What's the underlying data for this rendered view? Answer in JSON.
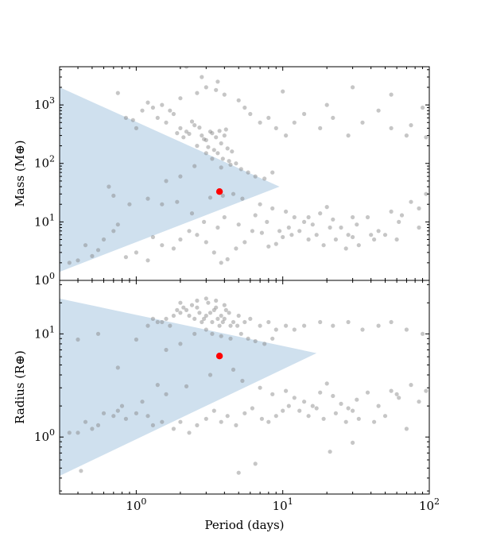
{
  "colors": {
    "points": "#808080",
    "highlight": "#ff0000",
    "region": "#cfe0ee",
    "frame": "#000000"
  },
  "chart_data": [
    {
      "type": "scatter",
      "panel": "top",
      "xlabel": "",
      "ylabel": "Mass (M⊕)",
      "xscale": "log",
      "yscale": "log",
      "xlim": [
        0.3,
        100
      ],
      "ylim": [
        1,
        4500
      ],
      "xticks": [
        1,
        10,
        100
      ],
      "xtick_labels": [],
      "yticks": [
        1,
        10,
        100,
        1000
      ],
      "ytick_labels": [
        "10^0",
        "10^1",
        "10^2",
        "10^3"
      ],
      "shaded_region": [
        [
          0.3,
          2000
        ],
        [
          9.5,
          40
        ],
        [
          0.3,
          1.4
        ]
      ],
      "highlight": {
        "x": 3.7,
        "y": 33
      },
      "points": [
        [
          1.4,
          600
        ],
        [
          1.6,
          500
        ],
        [
          1.8,
          700
        ],
        [
          2.0,
          400
        ],
        [
          2.2,
          350
        ],
        [
          2.5,
          450
        ],
        [
          2.8,
          300
        ],
        [
          3.0,
          250
        ],
        [
          3.2,
          350
        ],
        [
          3.5,
          280
        ],
        [
          3.8,
          220
        ],
        [
          4.0,
          300
        ],
        [
          4.2,
          180
        ],
        [
          4.5,
          160
        ],
        [
          2.6,
          200
        ],
        [
          3.1,
          190
        ],
        [
          3.4,
          170
        ],
        [
          3.6,
          150
        ],
        [
          3.9,
          120
        ],
        [
          4.3,
          110
        ],
        [
          4.8,
          100
        ],
        [
          2.9,
          260
        ],
        [
          2.3,
          320
        ],
        [
          2.1,
          280
        ],
        [
          1.9,
          330
        ],
        [
          3.3,
          330
        ],
        [
          3.7,
          360
        ],
        [
          4.1,
          380
        ],
        [
          2.7,
          410
        ],
        [
          2.4,
          520
        ],
        [
          1.7,
          800
        ],
        [
          1.5,
          1000
        ],
        [
          1.3,
          900
        ],
        [
          1.2,
          1100
        ],
        [
          2.0,
          1300
        ],
        [
          2.6,
          1600
        ],
        [
          3.0,
          2000
        ],
        [
          3.5,
          1800
        ],
        [
          4.0,
          1500
        ],
        [
          5.0,
          1200
        ],
        [
          5.5,
          900
        ],
        [
          6.0,
          700
        ],
        [
          7.0,
          500
        ],
        [
          8.0,
          600
        ],
        [
          9.0,
          400
        ],
        [
          10.5,
          300
        ],
        [
          12.0,
          500
        ],
        [
          14.0,
          700
        ],
        [
          18.0,
          400
        ],
        [
          22.0,
          600
        ],
        [
          28.0,
          300
        ],
        [
          35.0,
          500
        ],
        [
          45.0,
          800
        ],
        [
          55.0,
          400
        ],
        [
          70.0,
          300
        ],
        [
          90.0,
          900
        ],
        [
          2.2,
          4500
        ],
        [
          2.8,
          3000
        ],
        [
          3.6,
          2500
        ],
        [
          10.0,
          1700
        ],
        [
          20.0,
          1000
        ],
        [
          30.0,
          2000
        ],
        [
          55.0,
          1500
        ],
        [
          75.0,
          450
        ],
        [
          95.0,
          280
        ],
        [
          0.85,
          600
        ],
        [
          0.95,
          550
        ],
        [
          0.75,
          1600
        ],
        [
          1.1,
          800
        ],
        [
          1.0,
          400
        ],
        [
          3.0,
          150
        ],
        [
          3.3,
          120
        ],
        [
          2.5,
          90
        ],
        [
          3.8,
          85
        ],
        [
          4.4,
          95
        ],
        [
          5.2,
          80
        ],
        [
          5.8,
          70
        ],
        [
          6.5,
          60
        ],
        [
          7.5,
          55
        ],
        [
          8.5,
          70
        ],
        [
          2.0,
          60
        ],
        [
          1.6,
          50
        ],
        [
          3.2,
          26
        ],
        [
          3.9,
          28
        ],
        [
          4.6,
          30
        ],
        [
          5.3,
          25
        ],
        [
          7.0,
          20
        ],
        [
          8.5,
          17
        ],
        [
          10.5,
          15
        ],
        [
          12.0,
          12
        ],
        [
          14.0,
          10
        ],
        [
          16.0,
          9
        ],
        [
          18.0,
          14
        ],
        [
          20.0,
          18
        ],
        [
          22.0,
          11
        ],
        [
          25.0,
          8
        ],
        [
          28.0,
          6
        ],
        [
          32.0,
          9
        ],
        [
          38.0,
          12
        ],
        [
          45.0,
          7
        ],
        [
          55.0,
          15
        ],
        [
          62.0,
          10
        ],
        [
          75.0,
          22
        ],
        [
          85.0,
          17
        ],
        [
          95.0,
          30
        ],
        [
          11.0,
          8
        ],
        [
          13.0,
          7
        ],
        [
          15.0,
          5
        ],
        [
          17.0,
          6
        ],
        [
          19.0,
          4
        ],
        [
          23.0,
          5
        ],
        [
          27.0,
          3.5
        ],
        [
          30.0,
          5.5
        ],
        [
          33.0,
          4
        ],
        [
          42.0,
          5
        ],
        [
          50.0,
          6
        ],
        [
          60.0,
          5
        ],
        [
          10.0,
          5.5
        ],
        [
          9.0,
          4.2
        ],
        [
          8.0,
          3.8
        ],
        [
          7.2,
          6.5
        ],
        [
          6.2,
          7
        ],
        [
          5.5,
          4.5
        ],
        [
          4.8,
          3.5
        ],
        [
          4.2,
          2.3
        ],
        [
          3.8,
          2.0
        ],
        [
          3.4,
          3.0
        ],
        [
          3.0,
          4.5
        ],
        [
          2.6,
          6
        ],
        [
          2.3,
          7
        ],
        [
          2.0,
          5
        ],
        [
          1.8,
          3.5
        ],
        [
          1.5,
          4
        ],
        [
          1.3,
          5.5
        ],
        [
          1.2,
          2.2
        ],
        [
          1.0,
          3
        ],
        [
          0.85,
          2.5
        ],
        [
          0.75,
          9
        ],
        [
          0.7,
          7
        ],
        [
          0.6,
          5
        ],
        [
          0.55,
          3.3
        ],
        [
          0.5,
          2.6
        ],
        [
          0.45,
          4
        ],
        [
          0.4,
          2.2
        ],
        [
          0.35,
          2.0
        ],
        [
          0.65,
          40
        ],
        [
          0.7,
          28
        ],
        [
          0.9,
          20
        ],
        [
          1.2,
          25
        ],
        [
          1.5,
          20
        ],
        [
          1.9,
          22
        ],
        [
          2.4,
          14
        ],
        [
          2.9,
          10
        ],
        [
          3.6,
          8
        ],
        [
          4.0,
          12
        ],
        [
          5.0,
          9
        ],
        [
          6.5,
          13
        ],
        [
          7.8,
          10
        ],
        [
          9.5,
          7
        ],
        [
          11.5,
          6
        ],
        [
          15.0,
          12
        ],
        [
          21.0,
          8
        ],
        [
          30.0,
          12
        ],
        [
          40.0,
          6
        ],
        [
          65.0,
          13
        ],
        [
          85.0,
          8
        ]
      ]
    },
    {
      "type": "scatter",
      "panel": "bottom",
      "xlabel": "Period (days)",
      "ylabel": "Radius (R⊕)",
      "xscale": "log",
      "yscale": "log",
      "xlim": [
        0.3,
        100
      ],
      "ylim": [
        0.28,
        33
      ],
      "xticks": [
        1,
        10,
        100
      ],
      "xtick_labels": [
        "10^0",
        "10^1",
        "10^2"
      ],
      "yticks": [
        1,
        10
      ],
      "ytick_labels": [
        "10^0",
        "10^1"
      ],
      "shaded_region": [
        [
          0.3,
          22
        ],
        [
          17,
          6.5
        ],
        [
          0.3,
          0.42
        ]
      ],
      "highlight": {
        "x": 3.7,
        "y": 6.1
      },
      "points": [
        [
          1.4,
          13
        ],
        [
          1.6,
          14
        ],
        [
          1.8,
          15
        ],
        [
          2.0,
          16
        ],
        [
          2.2,
          17
        ],
        [
          2.5,
          14
        ],
        [
          2.8,
          13
        ],
        [
          3.0,
          15
        ],
        [
          3.2,
          16
        ],
        [
          3.5,
          18
        ],
        [
          3.8,
          15
        ],
        [
          4.0,
          14
        ],
        [
          4.3,
          16
        ],
        [
          4.6,
          13
        ],
        [
          2.6,
          18
        ],
        [
          3.1,
          20
        ],
        [
          3.4,
          17
        ],
        [
          3.7,
          12
        ],
        [
          3.9,
          13
        ],
        [
          4.4,
          12
        ],
        [
          4.9,
          12
        ],
        [
          2.9,
          14
        ],
        [
          2.3,
          15
        ],
        [
          2.1,
          18
        ],
        [
          1.9,
          17
        ],
        [
          3.3,
          13
        ],
        [
          3.6,
          14
        ],
        [
          4.1,
          17
        ],
        [
          2.7,
          16
        ],
        [
          2.4,
          19
        ],
        [
          1.7,
          12
        ],
        [
          1.5,
          13
        ],
        [
          1.3,
          14
        ],
        [
          1.2,
          12
        ],
        [
          2.0,
          20
        ],
        [
          2.6,
          21
        ],
        [
          3.0,
          22
        ],
        [
          3.5,
          21
        ],
        [
          4.0,
          19
        ],
        [
          5.0,
          15
        ],
        [
          5.5,
          13
        ],
        [
          6.0,
          14
        ],
        [
          7.0,
          12
        ],
        [
          8.0,
          13
        ],
        [
          9.0,
          11
        ],
        [
          10.5,
          12
        ],
        [
          12.0,
          11
        ],
        [
          14.0,
          12
        ],
        [
          18.0,
          13
        ],
        [
          22.0,
          12
        ],
        [
          28.0,
          13
        ],
        [
          35.0,
          11
        ],
        [
          45.0,
          12
        ],
        [
          55.0,
          13
        ],
        [
          70.0,
          11
        ],
        [
          90.0,
          10
        ],
        [
          3.0,
          11
        ],
        [
          3.3,
          10
        ],
        [
          2.5,
          10
        ],
        [
          3.8,
          9.5
        ],
        [
          4.4,
          9
        ],
        [
          5.2,
          10
        ],
        [
          5.8,
          9
        ],
        [
          6.5,
          8.5
        ],
        [
          7.5,
          8
        ],
        [
          8.5,
          9
        ],
        [
          2.0,
          8
        ],
        [
          1.6,
          7
        ],
        [
          1.0,
          8.8
        ],
        [
          0.4,
          8.8
        ],
        [
          0.55,
          10
        ],
        [
          0.75,
          4.7
        ],
        [
          3.2,
          4.0
        ],
        [
          4.6,
          4.5
        ],
        [
          5.3,
          3.5
        ],
        [
          7.0,
          3.0
        ],
        [
          8.5,
          2.6
        ],
        [
          10.5,
          2.8
        ],
        [
          12.0,
          2.4
        ],
        [
          14.0,
          2.2
        ],
        [
          16.0,
          2.0
        ],
        [
          18.0,
          2.7
        ],
        [
          20.0,
          3.3
        ],
        [
          22.0,
          2.5
        ],
        [
          25.0,
          2.1
        ],
        [
          28.0,
          1.9
        ],
        [
          32.0,
          2.3
        ],
        [
          38.0,
          2.7
        ],
        [
          45.0,
          2.0
        ],
        [
          55.0,
          2.8
        ],
        [
          62.0,
          2.4
        ],
        [
          75.0,
          3.2
        ],
        [
          85.0,
          2.2
        ],
        [
          95.0,
          2.8
        ],
        [
          11.0,
          2.0
        ],
        [
          13.0,
          1.8
        ],
        [
          15.0,
          1.6
        ],
        [
          17.0,
          1.9
        ],
        [
          19.0,
          1.5
        ],
        [
          23.0,
          1.7
        ],
        [
          27.0,
          1.4
        ],
        [
          30.0,
          1.8
        ],
        [
          33.0,
          1.5
        ],
        [
          42.0,
          1.4
        ],
        [
          50.0,
          1.6
        ],
        [
          60.0,
          2.6
        ],
        [
          70.0,
          1.2
        ],
        [
          21.0,
          0.72
        ],
        [
          30.0,
          0.88
        ],
        [
          6.5,
          0.55
        ],
        [
          5.0,
          0.45
        ],
        [
          10.0,
          1.8
        ],
        [
          9.0,
          1.6
        ],
        [
          8.0,
          1.4
        ],
        [
          7.2,
          1.5
        ],
        [
          6.2,
          1.9
        ],
        [
          5.5,
          1.7
        ],
        [
          4.8,
          1.3
        ],
        [
          4.2,
          1.6
        ],
        [
          3.8,
          1.4
        ],
        [
          3.4,
          1.8
        ],
        [
          3.0,
          1.5
        ],
        [
          2.6,
          1.3
        ],
        [
          2.3,
          1.1
        ],
        [
          2.0,
          1.4
        ],
        [
          1.8,
          1.2
        ],
        [
          1.5,
          1.4
        ],
        [
          1.3,
          1.3
        ],
        [
          1.2,
          1.6
        ],
        [
          1.0,
          1.7
        ],
        [
          0.85,
          1.5
        ],
        [
          0.75,
          1.8
        ],
        [
          0.7,
          1.6
        ],
        [
          0.6,
          1.7
        ],
        [
          0.55,
          1.3
        ],
        [
          0.5,
          1.2
        ],
        [
          0.45,
          1.4
        ],
        [
          0.4,
          1.1
        ],
        [
          0.35,
          1.1
        ],
        [
          0.42,
          0.47
        ],
        [
          1.1,
          2.2
        ],
        [
          1.6,
          2.6
        ],
        [
          2.2,
          3.1
        ],
        [
          0.8,
          2.0
        ],
        [
          1.4,
          3.2
        ]
      ]
    }
  ]
}
